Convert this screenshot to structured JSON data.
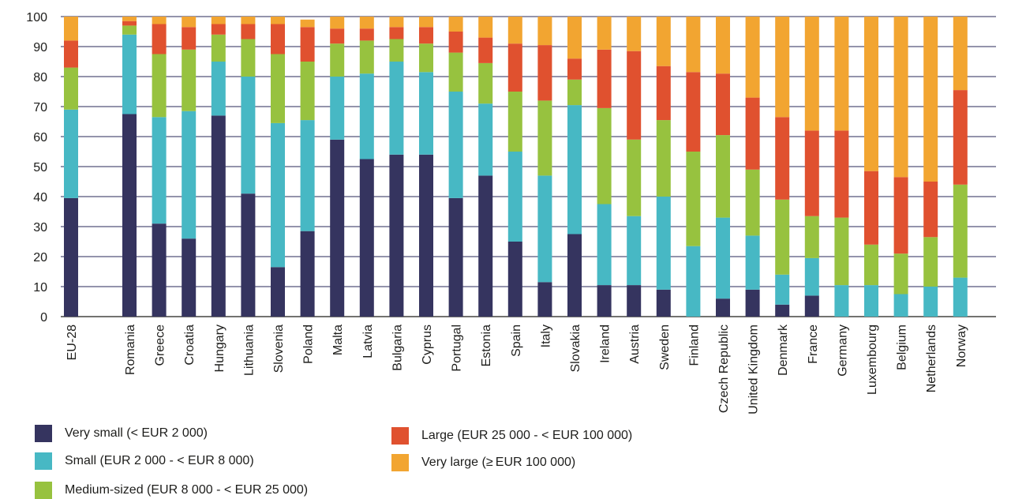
{
  "chart_data": {
    "type": "bar",
    "stacked": true,
    "title": "",
    "xlabel": "",
    "ylabel": "",
    "ylim": [
      0,
      100
    ],
    "yticks": [
      0,
      10,
      20,
      30,
      40,
      50,
      60,
      70,
      80,
      90,
      100
    ],
    "grid": "horizontal",
    "legend_position": "bottom-left",
    "categories": [
      "EU-28",
      "Romania",
      "Greece",
      "Croatia",
      "Hungary",
      "Lithuania",
      "Slovenia",
      "Poland",
      "Malta",
      "Latvia",
      "Bulgaria",
      "Cyprus",
      "Portugal",
      "Estonia",
      "Spain",
      "Italy",
      "Slovakia",
      "Ireland",
      "Austria",
      "Sweden",
      "Finland",
      "Czech Republic",
      "United Kingdom",
      "Denmark",
      "France",
      "Germany",
      "Luxembourg",
      "Belgium",
      "Netherlands",
      "Norway"
    ],
    "series": [
      {
        "name": "Very small (< EUR 2 000)",
        "color": "#35345f",
        "values": [
          39.5,
          67.5,
          31,
          26,
          67,
          41,
          16.5,
          28.5,
          59,
          52.5,
          54,
          54,
          39.5,
          47,
          25,
          11.5,
          27.5,
          10.5,
          10.5,
          9,
          0,
          6,
          9,
          4,
          7,
          0,
          0,
          0,
          0,
          0
        ]
      },
      {
        "name": "Small (EUR 2 000 - < EUR 8 000)",
        "color": "#47b8c4",
        "values": [
          29.5,
          26.5,
          35.5,
          42.5,
          18,
          39,
          48,
          37,
          21,
          28.5,
          31,
          27.5,
          35.5,
          24,
          30,
          35.5,
          43,
          27,
          23,
          31,
          23.5,
          27,
          18,
          10,
          12.5,
          10.5,
          10.5,
          7.5,
          10,
          13
        ]
      },
      {
        "name": "Medium-sized (EUR 8 000 - < EUR 25 000)",
        "color": "#97c23f",
        "values": [
          14,
          3,
          21,
          20.5,
          9,
          12.5,
          23,
          19.5,
          11,
          11,
          7.5,
          9.5,
          13,
          13.5,
          20,
          25,
          8.5,
          32,
          25.5,
          25.5,
          31.5,
          27.5,
          22,
          25,
          14,
          22.5,
          13.5,
          13.5,
          16.5,
          31
        ]
      },
      {
        "name": "Large (EUR 25 000 - < EUR 100 000)",
        "color": "#e0512f",
        "values": [
          9,
          1.5,
          10,
          7.5,
          3.5,
          5,
          10,
          11.5,
          5,
          4,
          4,
          5.5,
          7,
          8.5,
          16,
          18.5,
          7,
          19.5,
          29.5,
          18,
          26.5,
          20.5,
          24,
          27.5,
          28.5,
          29,
          24.5,
          25.5,
          18.5,
          31.5
        ]
      },
      {
        "name": "Very large (≥ EUR 100 000)",
        "color": "#f2a531",
        "values": [
          8,
          1.5,
          2.5,
          3.5,
          2.5,
          2.5,
          2.5,
          2.5,
          4,
          4,
          3.5,
          3.5,
          5,
          7,
          9,
          9.5,
          14,
          11,
          11.5,
          16.5,
          18.5,
          19,
          27,
          33.5,
          38,
          38,
          51.5,
          53.5,
          55,
          24.5
        ]
      }
    ]
  },
  "legend": {
    "items": [
      {
        "label": "Very small (< EUR 2 000)",
        "color": "#35345f"
      },
      {
        "label": "Small (EUR 2 000 - < EUR 8 000)",
        "color": "#47b8c4"
      },
      {
        "label": "Medium-sized (EUR 8 000 - < EUR 25 000)",
        "color": "#97c23f"
      },
      {
        "label": "Large (EUR 25 000 - < EUR 100 000)",
        "color": "#e0512f"
      },
      {
        "label": "Very large (≥ EUR 100 000)",
        "color": "#f2a531"
      }
    ]
  }
}
